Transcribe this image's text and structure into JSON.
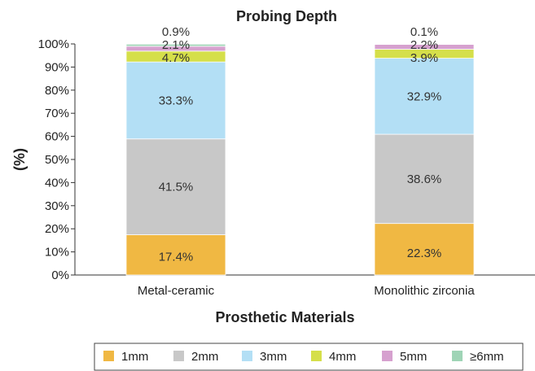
{
  "chart_data": {
    "type": "bar",
    "stacked": true,
    "title": "Probing Depth",
    "xlabel": "Prosthetic Materials",
    "ylabel": "(%)",
    "ylim": [
      0,
      100
    ],
    "yticks": [
      "0%",
      "10%",
      "20%",
      "30%",
      "40%",
      "50%",
      "60%",
      "70%",
      "80%",
      "90%",
      "100%"
    ],
    "categories": [
      "Metal-ceramic",
      "Monolithic zirconia"
    ],
    "series": [
      {
        "name": "1mm",
        "color": "#f0b843",
        "values": [
          17.4,
          22.3
        ],
        "labels": [
          "17.4%",
          "22.3%"
        ]
      },
      {
        "name": "2mm",
        "color": "#c8c8c8",
        "values": [
          41.5,
          38.6
        ],
        "labels": [
          "41.5%",
          "38.6%"
        ]
      },
      {
        "name": "3mm",
        "color": "#b3dff5",
        "values": [
          33.3,
          32.9
        ],
        "labels": [
          "33.3%",
          "32.9%"
        ]
      },
      {
        "name": "4mm",
        "color": "#d5df4a",
        "values": [
          4.7,
          3.9
        ],
        "labels": [
          "4.7%",
          "3.9%"
        ]
      },
      {
        "name": "5mm",
        "color": "#d6a1cf",
        "values": [
          2.1,
          2.2
        ],
        "labels": [
          "2.1%",
          "2.2%"
        ]
      },
      {
        "name": "≥6mm",
        "color": "#9fd4b6",
        "values": [
          0.9,
          0.1
        ],
        "labels": [
          "0.9%",
          "0.1%"
        ]
      }
    ],
    "grid": false,
    "legend": "bottom"
  }
}
